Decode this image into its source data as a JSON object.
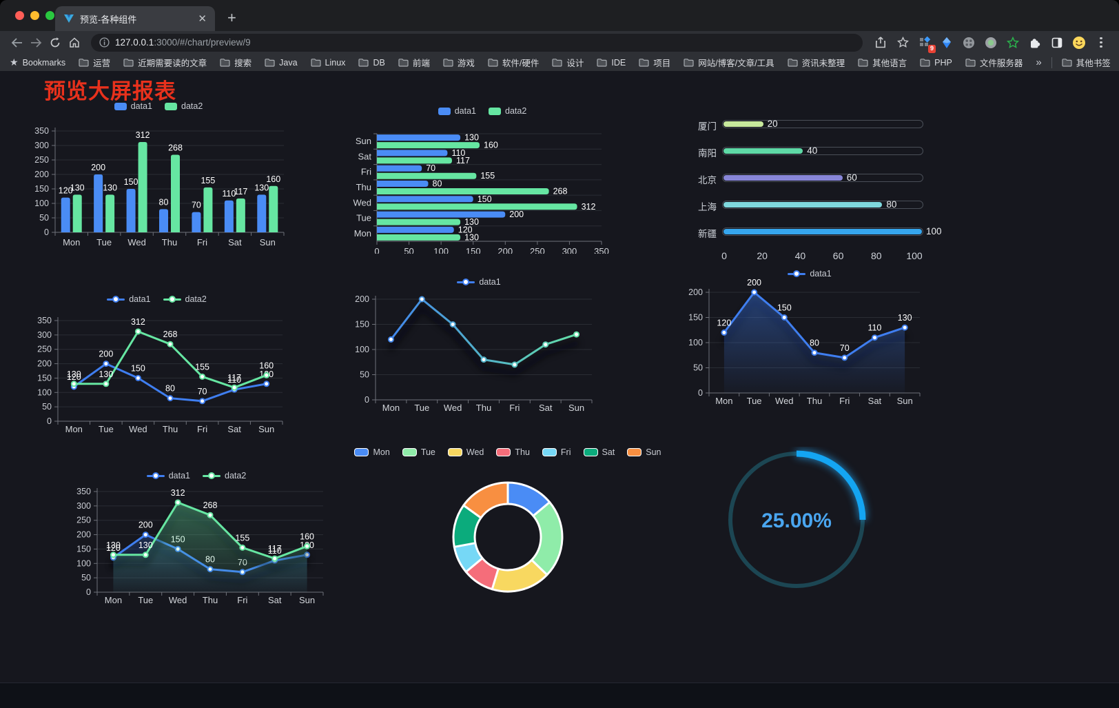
{
  "browser": {
    "tab_title": "预览-各种组件",
    "url_host": "127.0.0.1",
    "url_rest": ":3000/#/chart/preview/9",
    "extension_badge": "9",
    "bookmarks_label": "Bookmarks",
    "bookmark_folders": [
      "运营",
      "近期需要读的文章",
      "搜索",
      "Java",
      "Linux",
      "DB",
      "前端",
      "游戏",
      "软件/硬件",
      "设计",
      "IDE",
      "项目",
      "网站/博客/文章/工具",
      "资讯未整理",
      "其他语言",
      "PHP",
      "文件服务器"
    ],
    "overflow_chevron": "»",
    "other_bookmarks": "其他书签"
  },
  "page": {
    "title": "预览大屏报表",
    "title_color": "#e8311c"
  },
  "chart_data": [
    {
      "id": "c1",
      "type": "bar",
      "categories": [
        "Mon",
        "Tue",
        "Wed",
        "Thu",
        "Fri",
        "Sat",
        "Sun"
      ],
      "series": [
        {
          "name": "data1",
          "color": "#4a8cf5",
          "values": [
            120,
            200,
            150,
            80,
            70,
            110,
            130
          ]
        },
        {
          "name": "data2",
          "color": "#66e6a2",
          "values": [
            130,
            130,
            312,
            268,
            155,
            117,
            160
          ]
        }
      ],
      "ylim": [
        0,
        350
      ],
      "ytick_step": 50,
      "labels": true,
      "legend_position": "top",
      "grid": true
    },
    {
      "id": "c2",
      "type": "hbar",
      "categories": [
        "Mon",
        "Tue",
        "Wed",
        "Thu",
        "Fri",
        "Sat",
        "Sun"
      ],
      "series": [
        {
          "name": "data1",
          "color": "#4a8cf5",
          "values": [
            120,
            200,
            150,
            80,
            70,
            110,
            130
          ]
        },
        {
          "name": "data2",
          "color": "#66e6a2",
          "values": [
            130,
            130,
            312,
            268,
            155,
            117,
            160
          ]
        }
      ],
      "xlim": [
        0,
        350
      ],
      "xtick_step": 50,
      "labels": true,
      "legend_position": "top",
      "grid": true
    },
    {
      "id": "c3",
      "type": "progress",
      "items": [
        {
          "label": "厦门",
          "value": 20,
          "color": "#c7e89c"
        },
        {
          "label": "南阳",
          "value": 40,
          "color": "#5ed9a6"
        },
        {
          "label": "北京",
          "value": 60,
          "color": "#8886d8"
        },
        {
          "label": "上海",
          "value": 80,
          "color": "#7fd8dd"
        },
        {
          "label": "新疆",
          "value": 100,
          "color": "#36a6ee"
        }
      ],
      "max": 100,
      "xticks": [
        0,
        20,
        40,
        60,
        80,
        100
      ]
    },
    {
      "id": "c4",
      "type": "line",
      "categories": [
        "Mon",
        "Tue",
        "Wed",
        "Thu",
        "Fri",
        "Sat",
        "Sun"
      ],
      "series": [
        {
          "name": "data1",
          "color": "#3f7ef0",
          "values": [
            120,
            200,
            150,
            80,
            70,
            110,
            130
          ]
        },
        {
          "name": "data2",
          "color": "#66e6a2",
          "values": [
            130,
            130,
            312,
            268,
            155,
            117,
            160
          ]
        }
      ],
      "ylim": [
        0,
        350
      ],
      "ytick_step": 50,
      "labels": true,
      "legend_position": "top",
      "grid": true
    },
    {
      "id": "c5",
      "type": "line",
      "categories": [
        "Mon",
        "Tue",
        "Wed",
        "Thu",
        "Fri",
        "Sat",
        "Sun"
      ],
      "series": [
        {
          "name": "data1",
          "color": "#3f7ef0",
          "gradient": [
            "#3f7ef0",
            "#66e6a2"
          ],
          "values": [
            120,
            200,
            150,
            80,
            70,
            110,
            130
          ]
        }
      ],
      "ylim": [
        0,
        200
      ],
      "ytick_step": 50,
      "labels": false,
      "shadow": true,
      "legend_position": "top",
      "grid": true
    },
    {
      "id": "c6",
      "type": "line",
      "categories": [
        "Mon",
        "Tue",
        "Wed",
        "Thu",
        "Fri",
        "Sat",
        "Sun"
      ],
      "series": [
        {
          "name": "data1",
          "color": "#3f7ef0",
          "area": true,
          "values": [
            120,
            200,
            150,
            80,
            70,
            110,
            130
          ]
        }
      ],
      "ylim": [
        0,
        200
      ],
      "ytick_step": 50,
      "labels": true,
      "shadow": true,
      "legend_position": "top",
      "grid": true
    },
    {
      "id": "c7",
      "type": "line",
      "categories": [
        "Mon",
        "Tue",
        "Wed",
        "Thu",
        "Fri",
        "Sat",
        "Sun"
      ],
      "series": [
        {
          "name": "data1",
          "color": "#3f7ef0",
          "area": true,
          "values": [
            120,
            200,
            150,
            80,
            70,
            110,
            130
          ]
        },
        {
          "name": "data2",
          "color": "#66e6a2",
          "area": true,
          "values": [
            130,
            130,
            312,
            268,
            155,
            117,
            160
          ]
        }
      ],
      "ylim": [
        0,
        350
      ],
      "ytick_step": 50,
      "labels": true,
      "shadow": true,
      "legend_position": "top",
      "grid": true
    },
    {
      "id": "c8",
      "type": "donut",
      "items": [
        {
          "name": "Mon",
          "value": 120,
          "color": "#4a8cf5"
        },
        {
          "name": "Tue",
          "value": 200,
          "color": "#8feca9"
        },
        {
          "name": "Wed",
          "value": 150,
          "color": "#f8d860"
        },
        {
          "name": "Thu",
          "value": 80,
          "color": "#f56d7a"
        },
        {
          "name": "Fri",
          "value": 70,
          "color": "#76d8f6"
        },
        {
          "name": "Sat",
          "value": 110,
          "color": "#0bab7c"
        },
        {
          "name": "Sun",
          "value": 130,
          "color": "#f88f41"
        }
      ],
      "legend_position": "top"
    },
    {
      "id": "c9",
      "type": "gauge",
      "value_text": "25.00%",
      "percent": 25,
      "color": "#14a5f2",
      "track_color": "#1c4653",
      "text_color": "#4aa6f0"
    }
  ]
}
